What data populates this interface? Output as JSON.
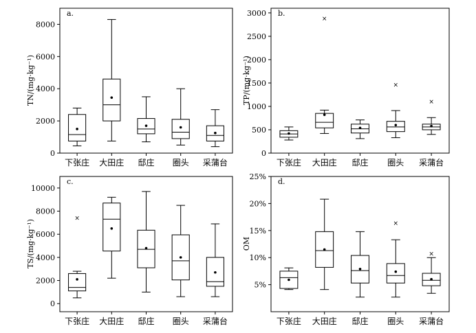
{
  "chart_data": [
    {
      "type": "box",
      "panel_label": "a.",
      "ylabel": "TN/(mg·kg⁻¹)",
      "ylim": [
        0,
        9000
      ],
      "yticks": [
        0,
        2000,
        4000,
        6000,
        8000
      ],
      "ytick_labels": [
        "0",
        "2000",
        "4000",
        "6000",
        "8000"
      ],
      "categories": [
        "下张庄",
        "大田庄",
        "邸庄",
        "圈头",
        "采蒲台"
      ],
      "boxes": [
        {
          "min": 450,
          "q1": 750,
          "median": 1150,
          "q3": 2400,
          "max": 2800,
          "mean": 1500,
          "outliers": []
        },
        {
          "min": 750,
          "q1": 2000,
          "median": 3000,
          "q3": 4600,
          "max": 8300,
          "mean": 3450,
          "outliers": []
        },
        {
          "min": 700,
          "q1": 1200,
          "median": 1500,
          "q3": 2150,
          "max": 3500,
          "mean": 1700,
          "outliers": []
        },
        {
          "min": 500,
          "q1": 900,
          "median": 1300,
          "q3": 2100,
          "max": 4000,
          "mean": 1600,
          "outliers": []
        },
        {
          "min": 400,
          "q1": 750,
          "median": 1100,
          "q3": 1700,
          "max": 2700,
          "mean": 1250,
          "outliers": []
        }
      ]
    },
    {
      "type": "box",
      "panel_label": "b.",
      "ylabel": "TP/(mg·kg⁻¹)",
      "ylim": [
        0,
        3100
      ],
      "yticks": [
        0,
        500,
        1000,
        1500,
        2000,
        2500,
        3000
      ],
      "ytick_labels": [
        "0",
        "500",
        "1000",
        "1500",
        "2000",
        "2500",
        "3000"
      ],
      "categories": [
        "下张庄",
        "大田庄",
        "邸庄",
        "圈头",
        "采蒲台"
      ],
      "boxes": [
        {
          "min": 280,
          "q1": 340,
          "median": 410,
          "q3": 480,
          "max": 560,
          "mean": 420,
          "outliers": []
        },
        {
          "min": 420,
          "q1": 540,
          "median": 660,
          "q3": 850,
          "max": 920,
          "mean": 820,
          "outliers": [
            2880
          ]
        },
        {
          "min": 310,
          "q1": 430,
          "median": 520,
          "q3": 620,
          "max": 710,
          "mean": 540,
          "outliers": []
        },
        {
          "min": 330,
          "q1": 460,
          "median": 560,
          "q3": 680,
          "max": 910,
          "mean": 600,
          "outliers": [
            1460
          ]
        },
        {
          "min": 400,
          "q1": 500,
          "median": 560,
          "q3": 620,
          "max": 760,
          "mean": 580,
          "outliers": [
            1100
          ]
        }
      ]
    },
    {
      "type": "box",
      "panel_label": "c.",
      "ylabel": "TS/(mg·kg⁻¹)",
      "ylim": [
        -700,
        11000
      ],
      "yticks": [
        0,
        2000,
        4000,
        6000,
        8000,
        10000
      ],
      "ytick_labels": [
        "0",
        "2000",
        "4000",
        "6000",
        "8000",
        "10000"
      ],
      "categories": [
        "下张庄",
        "大田庄",
        "邸庄",
        "圈头",
        "采蒲台"
      ],
      "boxes": [
        {
          "min": 500,
          "q1": 1100,
          "median": 1400,
          "q3": 2600,
          "max": 2800,
          "mean": 2100,
          "outliers": [
            7400
          ]
        },
        {
          "min": 2200,
          "q1": 4550,
          "median": 7300,
          "q3": 8700,
          "max": 9200,
          "mean": 6500,
          "outliers": []
        },
        {
          "min": 1000,
          "q1": 3100,
          "median": 4700,
          "q3": 6350,
          "max": 9700,
          "mean": 4800,
          "outliers": []
        },
        {
          "min": 600,
          "q1": 2050,
          "median": 3700,
          "q3": 5950,
          "max": 8500,
          "mean": 4000,
          "outliers": []
        },
        {
          "min": 600,
          "q1": 1500,
          "median": 1900,
          "q3": 4000,
          "max": 6900,
          "mean": 2700,
          "outliers": []
        }
      ]
    },
    {
      "type": "box",
      "panel_label": "d.",
      "ylabel": "OM",
      "ylim": [
        0,
        25
      ],
      "yticks": [
        5,
        10,
        15,
        20,
        25
      ],
      "ytick_labels": [
        "5%",
        "10%",
        "15%",
        "20%",
        "25%"
      ],
      "categories": [
        "下张庄",
        "大田庄",
        "邸庄",
        "圈头",
        "采蒲台"
      ],
      "boxes": [
        {
          "min": 4.1,
          "q1": 4.3,
          "median": 6.3,
          "q3": 7.5,
          "max": 8.1,
          "mean": 5.9,
          "outliers": []
        },
        {
          "min": 4.1,
          "q1": 8.2,
          "median": 11.3,
          "q3": 14.8,
          "max": 20.8,
          "mean": 11.5,
          "outliers": []
        },
        {
          "min": 2.7,
          "q1": 5.3,
          "median": 7.6,
          "q3": 10.4,
          "max": 14.8,
          "mean": 7.9,
          "outliers": []
        },
        {
          "min": 2.7,
          "q1": 5.3,
          "median": 6.7,
          "q3": 8.9,
          "max": 13.3,
          "mean": 7.4,
          "outliers": [
            16.4
          ]
        },
        {
          "min": 3.4,
          "q1": 4.8,
          "median": 5.8,
          "q3": 7.1,
          "max": 10.0,
          "mean": 6.0,
          "outliers": [
            10.7
          ]
        }
      ]
    }
  ]
}
